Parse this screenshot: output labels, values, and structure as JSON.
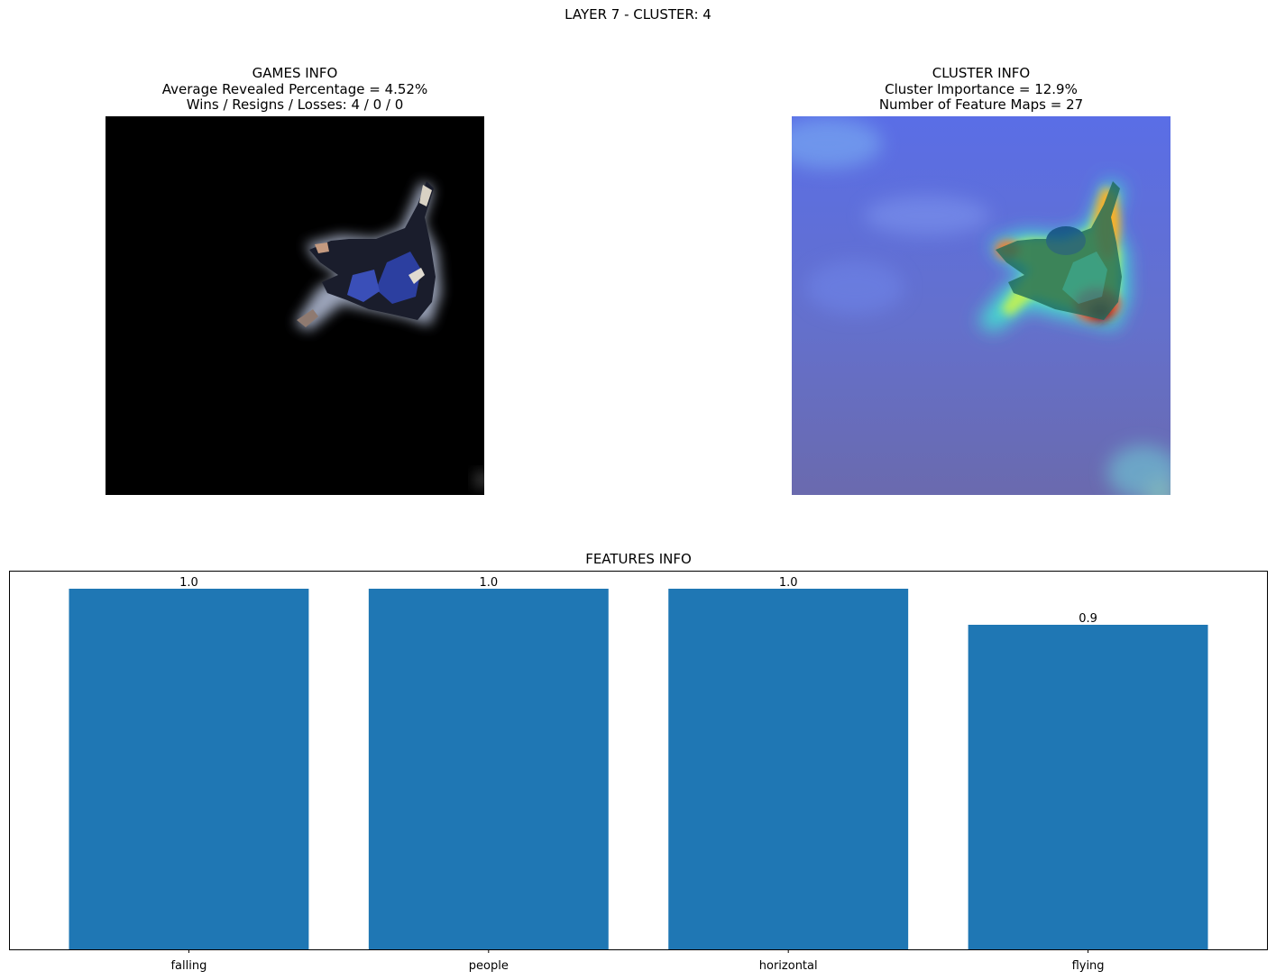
{
  "suptitle": "LAYER 7 - CLUSTER: 4",
  "games_info": {
    "title": "GAMES INFO",
    "line1": "Average Revealed Percentage = 4.52%",
    "line2": "Wins / Resigns / Losses: 4 / 0 / 0"
  },
  "cluster_info": {
    "title": "CLUSTER INFO",
    "line1": "Cluster Importance = 12.9%",
    "line2": "Number of Feature Maps = 27"
  },
  "colors": {
    "bar": "#1f77b4",
    "masked_background": "#000000",
    "heatmap_base": "#6a6fc8"
  },
  "chart_data": {
    "type": "bar",
    "title": "FEATURES INFO",
    "categories": [
      "falling",
      "people",
      "horizontal",
      "flying"
    ],
    "values": [
      1.0,
      1.0,
      1.0,
      0.9
    ],
    "value_labels": [
      "1.0",
      "1.0",
      "1.0",
      "0.9"
    ],
    "ylim": [
      0,
      1.05
    ],
    "y_ticks_visible": false,
    "grid": false,
    "xlabel": "",
    "ylabel": ""
  }
}
